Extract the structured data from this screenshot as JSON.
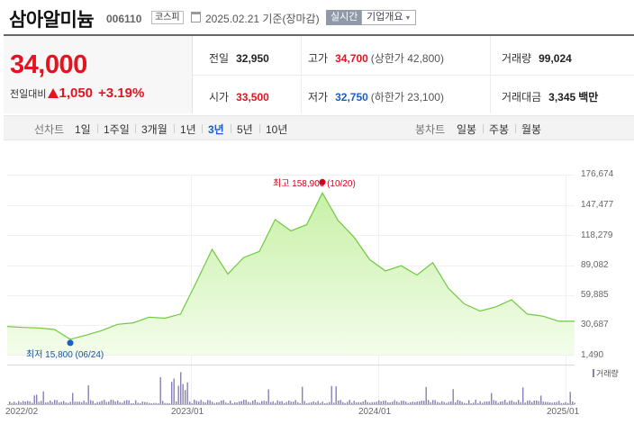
{
  "header": {
    "stock_name": "삼아알미늄",
    "stock_code": "006110",
    "market": "코스피",
    "date_text": "2025.02.21 기준(장마감)",
    "realtime_label": "실시간",
    "company_label": "기업개요",
    "icons": [
      "calendar-icon",
      "chevron-down-icon"
    ]
  },
  "quote": {
    "price": "34,000",
    "change_label": "전일대비",
    "change": "1,050",
    "change_pct": "+3.19%",
    "prev_close_label": "전일",
    "prev_close": "32,950",
    "open_label": "시가",
    "open": "33,500",
    "high_label": "고가",
    "high": "34,700",
    "upper_limit": "(상한가 42,800)",
    "low_label": "저가",
    "low": "32,750",
    "lower_limit": "(하한가 23,100)",
    "volume_label": "거래량",
    "volume": "99,024",
    "amount_label": "거래대금",
    "amount": "3,345",
    "amount_unit": "백만",
    "colors": {
      "up": "#e2141f",
      "down": "#1b5ec9"
    }
  },
  "tabs": {
    "line_label": "선차트",
    "line": [
      "1일",
      "1주일",
      "3개월",
      "1년",
      "3년",
      "5년",
      "10년"
    ],
    "active": "3년",
    "candle_label": "봉차트",
    "candle": [
      "일봉",
      "주봉",
      "월봉"
    ]
  },
  "chart_data": {
    "type": "area",
    "y_ticks": [
      "176,674",
      "147,477",
      "118,279",
      "89,082",
      "59,885",
      "30,687",
      "1,490"
    ],
    "ylim": [
      1490,
      176674
    ],
    "x_ticks": [
      "2022/02",
      "2023/01",
      "2024/01",
      "2025/01"
    ],
    "max_annotation": "최고 158,900 (10/20)",
    "min_annotation": "최저 15,800 (06/24)",
    "volume_legend": "거래량",
    "series": [
      {
        "x": [
          "2022-02",
          "2022-03",
          "2022-04",
          "2022-05",
          "2022-06",
          "2022-07",
          "2022-08",
          "2022-09",
          "2022-10",
          "2022-11",
          "2022-12",
          "2023-01",
          "2023-02",
          "2023-03",
          "2023-04",
          "2023-05",
          "2023-06",
          "2023-07",
          "2023-08",
          "2023-09",
          "2023-10",
          "2023-11",
          "2023-12",
          "2024-01",
          "2024-02",
          "2024-03",
          "2024-04",
          "2024-05",
          "2024-06",
          "2024-07",
          "2024-08",
          "2024-09",
          "2024-10",
          "2024-11",
          "2024-12",
          "2025-01",
          "2025-02"
        ],
        "values": [
          29000,
          28000,
          27500,
          26000,
          16500,
          20500,
          25000,
          31000,
          32500,
          38000,
          37000,
          41000,
          72000,
          104000,
          80000,
          96000,
          102000,
          133000,
          122000,
          128000,
          158900,
          132000,
          116000,
          94000,
          83000,
          88000,
          79000,
          91000,
          66000,
          51000,
          44000,
          48000,
          55000,
          41000,
          39000,
          34000,
          34000
        ]
      }
    ],
    "colors": {
      "line": "#6fc93f",
      "fill_top": "#c8f0a8",
      "fill_bottom": "#f3fdea",
      "volume": "#8a7fb5"
    }
  }
}
